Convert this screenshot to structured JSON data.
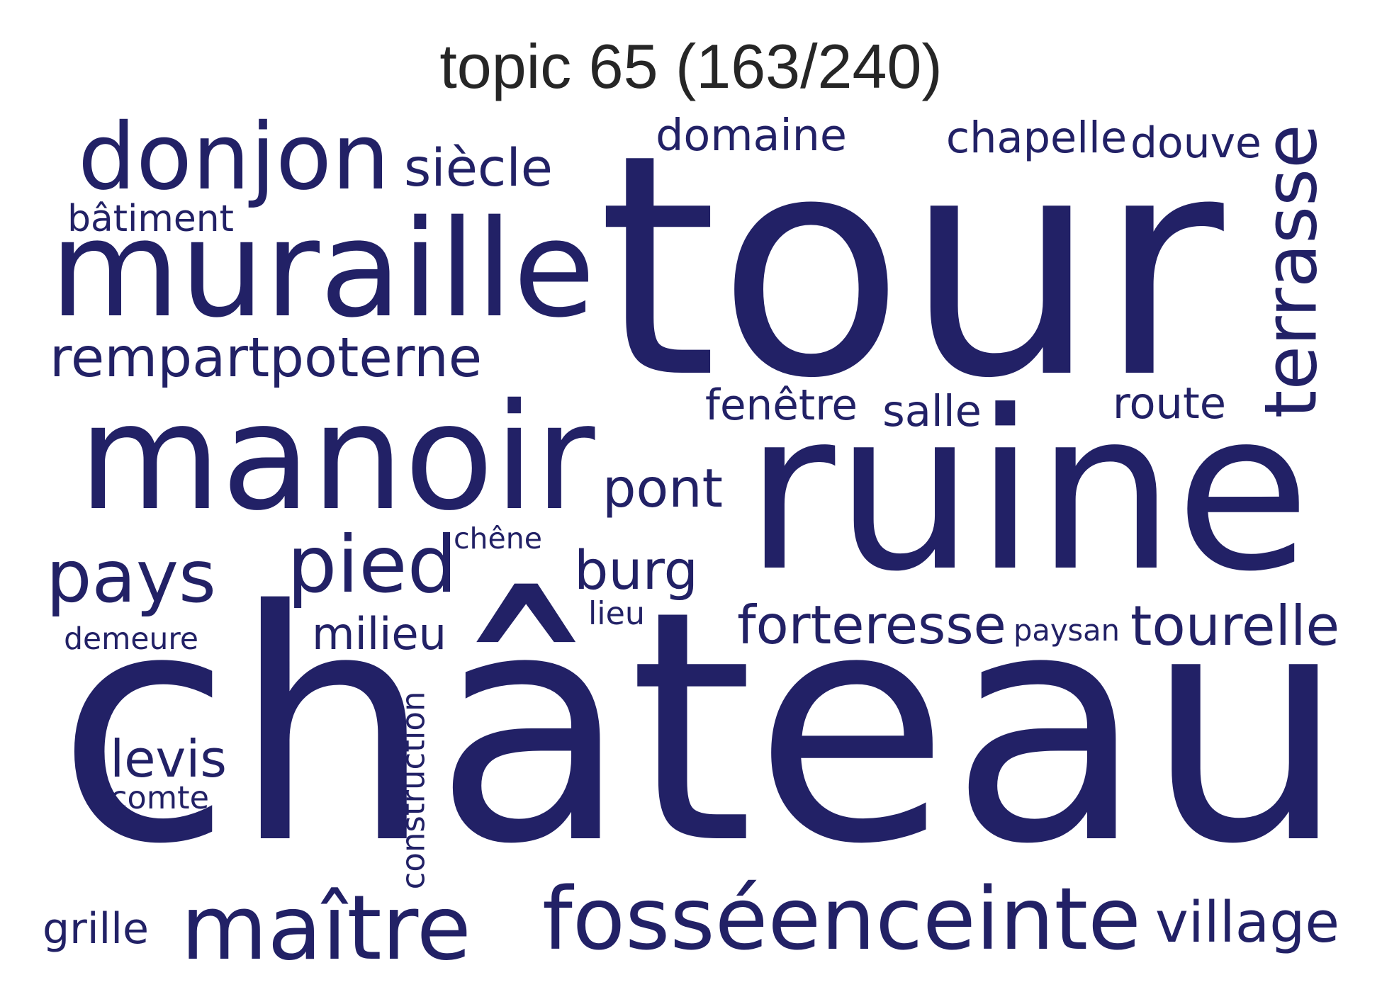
{
  "title": "topic 65 (163/240)",
  "word_color": "#222166",
  "words": [
    {
      "text": "château",
      "rotated": false
    },
    {
      "text": "tour",
      "rotated": false
    },
    {
      "text": "ruine",
      "rotated": false
    },
    {
      "text": "manoir",
      "rotated": false
    },
    {
      "text": "muraille",
      "rotated": false
    },
    {
      "text": "donjon",
      "rotated": false
    },
    {
      "text": "fosséenceinte",
      "rotated": false
    },
    {
      "text": "maître",
      "rotated": false
    },
    {
      "text": "terrasse",
      "rotated": true
    },
    {
      "text": "pied",
      "rotated": false
    },
    {
      "text": "pays",
      "rotated": false
    },
    {
      "text": "rempartpoterne",
      "rotated": false
    },
    {
      "text": "siècle",
      "rotated": false
    },
    {
      "text": "forteresse",
      "rotated": false
    },
    {
      "text": "tourelle",
      "rotated": false
    },
    {
      "text": "village",
      "rotated": false
    },
    {
      "text": "burg",
      "rotated": false
    },
    {
      "text": "pont",
      "rotated": false
    },
    {
      "text": "levis",
      "rotated": false
    },
    {
      "text": "domaine",
      "rotated": false
    },
    {
      "text": "chapelle",
      "rotated": false
    },
    {
      "text": "douve",
      "rotated": false
    },
    {
      "text": "fenêtre",
      "rotated": false
    },
    {
      "text": "salle",
      "rotated": false
    },
    {
      "text": "route",
      "rotated": false
    },
    {
      "text": "milieu",
      "rotated": false
    },
    {
      "text": "grille",
      "rotated": false
    },
    {
      "text": "bâtiment",
      "rotated": false
    },
    {
      "text": "construction",
      "rotated": true
    },
    {
      "text": "chêne",
      "rotated": false
    },
    {
      "text": "lieu",
      "rotated": false
    },
    {
      "text": "demeure",
      "rotated": false
    },
    {
      "text": "paysan",
      "rotated": false
    },
    {
      "text": "comte",
      "rotated": false
    }
  ]
}
